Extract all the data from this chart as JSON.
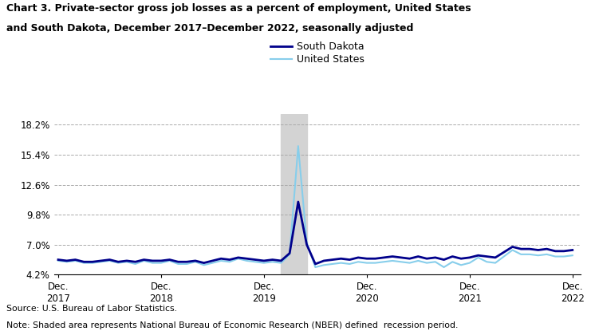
{
  "title_line1": "Chart 3. Private-sector gross job losses as a percent of employment, United States",
  "title_line2": "and South Dakota, December 2017–December 2022, seasonally adjusted",
  "source_text": "Source: U.S. Bureau of Labor Statistics.",
  "note_text": "Note: Shaded area represents National Bureau of Economic Research (NBER) defined  recession period.",
  "legend_labels": [
    "South Dakota",
    "United States"
  ],
  "sd_color": "#00008B",
  "us_color": "#87CEEB",
  "recession_color": "#D3D3D3",
  "recession_start": 26,
  "recession_end": 29,
  "yticks": [
    4.2,
    7.0,
    9.8,
    12.6,
    15.4,
    18.2
  ],
  "ylim": [
    4.2,
    19.2
  ],
  "xtick_positions": [
    0,
    12,
    24,
    36,
    48,
    60
  ],
  "xtick_labels": [
    "Dec.\n2017",
    "Dec.\n2018",
    "Dec.\n2019",
    "Dec.\n2020",
    "Dec.\n2021",
    "Dec.\n2022"
  ],
  "south_dakota": [
    5.6,
    5.5,
    5.6,
    5.4,
    5.4,
    5.5,
    5.6,
    5.4,
    5.5,
    5.4,
    5.6,
    5.5,
    5.5,
    5.6,
    5.4,
    5.4,
    5.5,
    5.3,
    5.5,
    5.7,
    5.6,
    5.8,
    5.7,
    5.6,
    5.5,
    5.6,
    5.5,
    6.2,
    11.0,
    7.0,
    5.2,
    5.5,
    5.6,
    5.7,
    5.6,
    5.8,
    5.7,
    5.7,
    5.8,
    5.9,
    5.8,
    5.7,
    5.9,
    5.7,
    5.8,
    5.6,
    5.9,
    5.7,
    5.8,
    6.0,
    5.9,
    5.8,
    6.3,
    6.8,
    6.6,
    6.6,
    6.5,
    6.6,
    6.4,
    6.4,
    6.5
  ],
  "united_states": [
    5.5,
    5.4,
    5.5,
    5.3,
    5.3,
    5.4,
    5.5,
    5.3,
    5.4,
    5.2,
    5.5,
    5.3,
    5.3,
    5.5,
    5.2,
    5.2,
    5.4,
    5.1,
    5.3,
    5.5,
    5.4,
    5.7,
    5.5,
    5.4,
    5.3,
    5.4,
    5.3,
    6.1,
    16.2,
    7.2,
    4.9,
    5.1,
    5.2,
    5.3,
    5.2,
    5.4,
    5.3,
    5.3,
    5.4,
    5.5,
    5.4,
    5.3,
    5.5,
    5.3,
    5.4,
    4.9,
    5.4,
    5.1,
    5.3,
    5.8,
    5.4,
    5.3,
    5.9,
    6.5,
    6.1,
    6.1,
    6.0,
    6.1,
    5.9,
    5.9,
    6.0
  ]
}
